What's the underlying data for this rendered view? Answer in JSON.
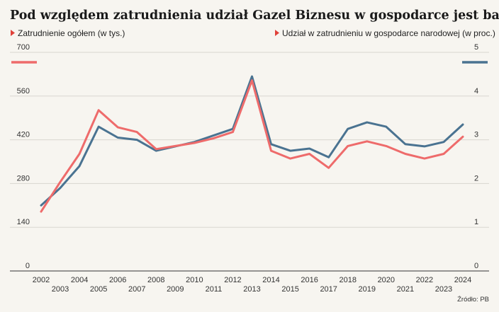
{
  "chart_data": {
    "type": "line",
    "title": "Pod względem zatrudnienia udział Gazel Biznesu w gospodarce jest bardzo stabilny",
    "x": [
      2002,
      2003,
      2004,
      2005,
      2006,
      2007,
      2008,
      2009,
      2010,
      2011,
      2012,
      2013,
      2014,
      2015,
      2016,
      2017,
      2018,
      2019,
      2020,
      2021,
      2022,
      2023,
      2024
    ],
    "x_tick_labels": [
      "2002",
      "2003",
      "2004",
      "2005",
      "2006",
      "2007",
      "2008",
      "2009",
      "2010",
      "2011",
      "2012",
      "2013",
      "2014",
      "2015",
      "2016",
      "2017",
      "2018",
      "2019",
      "2020",
      "2021",
      "2022",
      "2023",
      "2024"
    ],
    "series": [
      {
        "name": "Zatrudnienie ogółem (w tys.)",
        "axis": "left",
        "color": "#ee6b6b",
        "values": [
          190,
          285,
          375,
          515,
          460,
          445,
          390,
          400,
          410,
          425,
          445,
          610,
          385,
          360,
          375,
          330,
          400,
          415,
          400,
          375,
          360,
          375,
          430
        ]
      },
      {
        "name": "Udział w zatrudnieniu w gospodarce narodowej (w proc.)",
        "axis": "right",
        "color": "#4a7391",
        "values": [
          1.5,
          1.9,
          2.4,
          3.3,
          3.05,
          3.0,
          2.75,
          2.85,
          2.95,
          3.1,
          3.25,
          4.45,
          2.9,
          2.75,
          2.8,
          2.6,
          3.25,
          3.4,
          3.3,
          2.9,
          2.85,
          2.95,
          3.35
        ]
      }
    ],
    "y_left": {
      "ticks": [
        "0",
        "140",
        "280",
        "420",
        "560",
        "700"
      ],
      "lim": [
        0,
        700
      ]
    },
    "y_right": {
      "ticks": [
        "0",
        "1",
        "2",
        "3",
        "4",
        "5"
      ],
      "lim": [
        0,
        5
      ]
    },
    "grid": true,
    "legend": "top",
    "source": "Źródło: PB"
  }
}
